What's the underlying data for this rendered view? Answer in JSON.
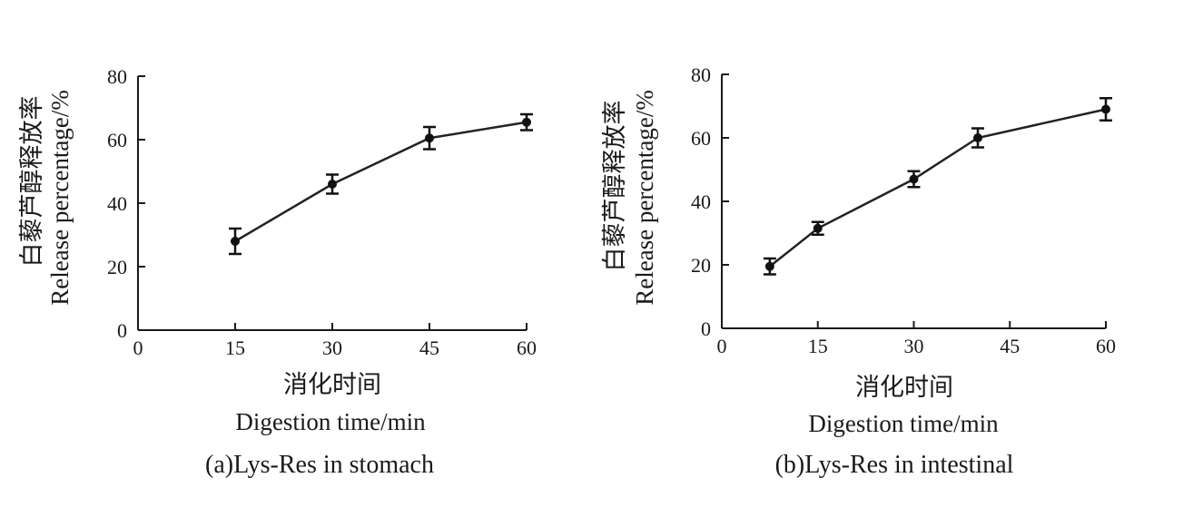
{
  "chart_data": [
    {
      "type": "line",
      "ylabel_cn": "白藜芦醇释放率",
      "ylabel": "Release percentage/%",
      "xlabel_cn": "消化时间",
      "xlabel": "Digestion time/min",
      "caption": "(a)Lys-Res in stomach",
      "xlim": [
        0,
        60
      ],
      "ylim": [
        0,
        80
      ],
      "xticks": [
        "0",
        "15",
        "30",
        "45",
        "60"
      ],
      "yticks": [
        "0",
        "20",
        "40",
        "60",
        "80"
      ],
      "xtick_values": [
        0,
        15,
        30,
        45,
        60
      ],
      "ytick_values": [
        0,
        20,
        40,
        60,
        80
      ],
      "x": [
        15,
        30,
        45,
        60
      ],
      "values": [
        28,
        46,
        60.5,
        65.5
      ],
      "errors": [
        4,
        3,
        3.5,
        2.5
      ]
    },
    {
      "type": "line",
      "ylabel_cn": "白藜芦醇释放率",
      "ylabel": "Release percentage/%",
      "xlabel_cn": "消化时间",
      "xlabel": "Digestion time/min",
      "caption": "(b)Lys-Res in intestinal",
      "xlim": [
        0,
        60
      ],
      "ylim": [
        0,
        80
      ],
      "xticks": [
        "0",
        "15",
        "30",
        "45",
        "60"
      ],
      "yticks": [
        "0",
        "20",
        "40",
        "60",
        "80"
      ],
      "xtick_values": [
        0,
        15,
        30,
        45,
        60
      ],
      "ytick_values": [
        0,
        20,
        40,
        60,
        80
      ],
      "x": [
        7.5,
        15,
        30,
        40,
        60
      ],
      "values": [
        19.5,
        31.5,
        47,
        60,
        69
      ],
      "errors": [
        2.5,
        2,
        2.5,
        3,
        3.5
      ]
    }
  ]
}
